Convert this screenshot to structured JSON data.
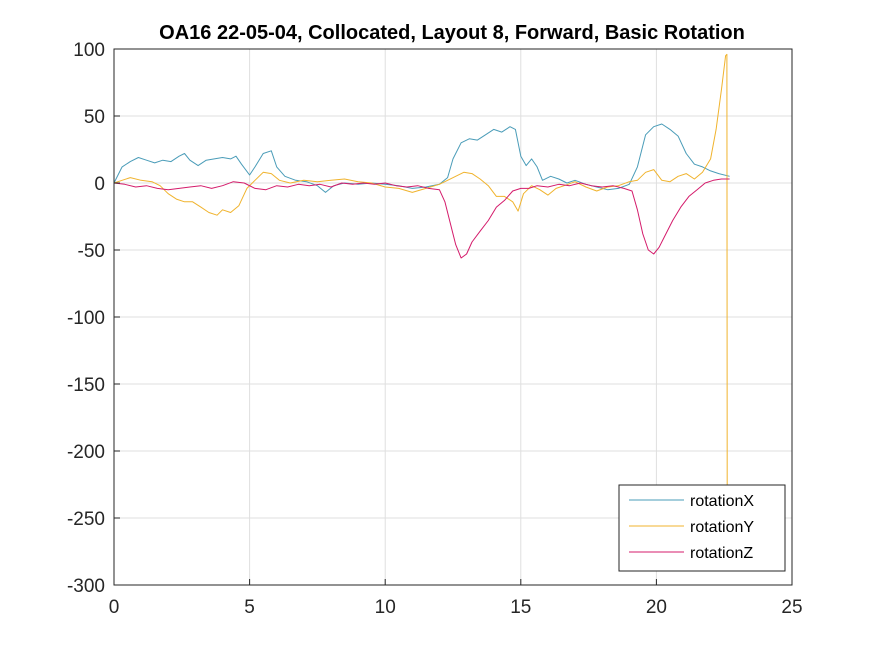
{
  "chart_data": {
    "type": "line",
    "title": "OA16 22-05-04, Collocated, Layout 8, Forward, Basic Rotation",
    "xlabel": "",
    "ylabel": "",
    "xlim": [
      0,
      25
    ],
    "ylim": [
      -300,
      100
    ],
    "xticks": [
      "0",
      "5",
      "10",
      "15",
      "20",
      "25"
    ],
    "yticks": [
      "100",
      "50",
      "0",
      "-50",
      "-100",
      "-150",
      "-200",
      "-250",
      "-300"
    ],
    "grid": true,
    "legend_position": "bottom-right",
    "series": [
      {
        "name": "rotationX",
        "color": "#4a9cb8",
        "points": [
          [
            0,
            0
          ],
          [
            0.3,
            12
          ],
          [
            0.6,
            16
          ],
          [
            0.9,
            19
          ],
          [
            1.2,
            17
          ],
          [
            1.5,
            15
          ],
          [
            1.8,
            17
          ],
          [
            2.1,
            16
          ],
          [
            2.4,
            20
          ],
          [
            2.6,
            22
          ],
          [
            2.8,
            17
          ],
          [
            3.1,
            13
          ],
          [
            3.4,
            17
          ],
          [
            3.7,
            18
          ],
          [
            4.0,
            19
          ],
          [
            4.3,
            18
          ],
          [
            4.5,
            20
          ],
          [
            4.7,
            14
          ],
          [
            5.0,
            6
          ],
          [
            5.2,
            12
          ],
          [
            5.5,
            22
          ],
          [
            5.8,
            24
          ],
          [
            6.0,
            12
          ],
          [
            6.3,
            5
          ],
          [
            6.7,
            2
          ],
          [
            7.1,
            1
          ],
          [
            7.5,
            -2
          ],
          [
            7.8,
            -7
          ],
          [
            8.1,
            -2
          ],
          [
            8.5,
            0
          ],
          [
            9.0,
            -1
          ],
          [
            9.5,
            0
          ],
          [
            10.0,
            -1
          ],
          [
            10.5,
            -2
          ],
          [
            11.0,
            -4
          ],
          [
            11.5,
            -3
          ],
          [
            12.0,
            -1
          ],
          [
            12.3,
            4
          ],
          [
            12.5,
            18
          ],
          [
            12.8,
            30
          ],
          [
            13.1,
            33
          ],
          [
            13.4,
            32
          ],
          [
            13.7,
            36
          ],
          [
            14.0,
            40
          ],
          [
            14.3,
            38
          ],
          [
            14.6,
            42
          ],
          [
            14.8,
            40
          ],
          [
            15.0,
            20
          ],
          [
            15.2,
            13
          ],
          [
            15.4,
            18
          ],
          [
            15.6,
            12
          ],
          [
            15.8,
            2
          ],
          [
            16.1,
            5
          ],
          [
            16.4,
            3
          ],
          [
            16.7,
            0
          ],
          [
            17.0,
            2
          ],
          [
            17.4,
            -1
          ],
          [
            17.8,
            -3
          ],
          [
            18.2,
            -5
          ],
          [
            18.6,
            -4
          ],
          [
            19.0,
            -1
          ],
          [
            19.3,
            12
          ],
          [
            19.6,
            36
          ],
          [
            19.9,
            42
          ],
          [
            20.2,
            44
          ],
          [
            20.5,
            40
          ],
          [
            20.8,
            35
          ],
          [
            21.1,
            22
          ],
          [
            21.4,
            14
          ],
          [
            21.7,
            12
          ],
          [
            22.0,
            9
          ],
          [
            22.3,
            7
          ],
          [
            22.7,
            5
          ]
        ]
      },
      {
        "name": "rotationY",
        "color": "#f0b32d",
        "points": [
          [
            0,
            0
          ],
          [
            0.3,
            2
          ],
          [
            0.6,
            4
          ],
          [
            1.0,
            2
          ],
          [
            1.4,
            1
          ],
          [
            1.7,
            -2
          ],
          [
            2.0,
            -8
          ],
          [
            2.3,
            -12
          ],
          [
            2.6,
            -14
          ],
          [
            2.9,
            -14
          ],
          [
            3.2,
            -18
          ],
          [
            3.5,
            -22
          ],
          [
            3.8,
            -24
          ],
          [
            4.0,
            -20
          ],
          [
            4.3,
            -22
          ],
          [
            4.6,
            -17
          ],
          [
            4.9,
            -4
          ],
          [
            5.2,
            2
          ],
          [
            5.5,
            8
          ],
          [
            5.8,
            7
          ],
          [
            6.1,
            2
          ],
          [
            6.5,
            0
          ],
          [
            7.0,
            2
          ],
          [
            7.5,
            1
          ],
          [
            8.0,
            2
          ],
          [
            8.5,
            3
          ],
          [
            9.0,
            1
          ],
          [
            9.5,
            0
          ],
          [
            10.0,
            -3
          ],
          [
            10.5,
            -4
          ],
          [
            11.0,
            -7
          ],
          [
            11.5,
            -4
          ],
          [
            12.0,
            -1
          ],
          [
            12.3,
            2
          ],
          [
            12.6,
            5
          ],
          [
            12.9,
            8
          ],
          [
            13.2,
            7
          ],
          [
            13.5,
            3
          ],
          [
            13.8,
            -2
          ],
          [
            14.1,
            -10
          ],
          [
            14.4,
            -10
          ],
          [
            14.7,
            -14
          ],
          [
            14.9,
            -21
          ],
          [
            15.1,
            -8
          ],
          [
            15.4,
            -2
          ],
          [
            15.7,
            -5
          ],
          [
            16.0,
            -9
          ],
          [
            16.3,
            -4
          ],
          [
            16.6,
            -2
          ],
          [
            17.0,
            1
          ],
          [
            17.4,
            -3
          ],
          [
            17.8,
            -6
          ],
          [
            18.2,
            -3
          ],
          [
            18.6,
            -2
          ],
          [
            19.0,
            1
          ],
          [
            19.3,
            2
          ],
          [
            19.6,
            8
          ],
          [
            19.9,
            10
          ],
          [
            20.2,
            2
          ],
          [
            20.5,
            1
          ],
          [
            20.8,
            5
          ],
          [
            21.1,
            7
          ],
          [
            21.4,
            3
          ],
          [
            21.7,
            8
          ],
          [
            22.0,
            18
          ],
          [
            22.2,
            40
          ],
          [
            22.4,
            70
          ],
          [
            22.55,
            95
          ],
          [
            22.6,
            96
          ],
          [
            22.61,
            -230
          ]
        ]
      },
      {
        "name": "rotationZ",
        "color": "#d41b6b",
        "points": [
          [
            0,
            0
          ],
          [
            0.4,
            -1
          ],
          [
            0.8,
            -3
          ],
          [
            1.2,
            -2
          ],
          [
            1.6,
            -4
          ],
          [
            2.0,
            -5
          ],
          [
            2.4,
            -4
          ],
          [
            2.8,
            -3
          ],
          [
            3.2,
            -2
          ],
          [
            3.6,
            -4
          ],
          [
            4.0,
            -2
          ],
          [
            4.4,
            1
          ],
          [
            4.8,
            0
          ],
          [
            5.2,
            -4
          ],
          [
            5.6,
            -5
          ],
          [
            6.0,
            -2
          ],
          [
            6.4,
            -3
          ],
          [
            6.8,
            -1
          ],
          [
            7.2,
            -2
          ],
          [
            7.6,
            -1
          ],
          [
            8.0,
            -3
          ],
          [
            8.4,
            0
          ],
          [
            8.8,
            -1
          ],
          [
            9.2,
            0
          ],
          [
            9.6,
            -1
          ],
          [
            10.0,
            0
          ],
          [
            10.4,
            -2
          ],
          [
            10.8,
            -3
          ],
          [
            11.2,
            -2
          ],
          [
            11.6,
            -4
          ],
          [
            12.0,
            -5
          ],
          [
            12.2,
            -14
          ],
          [
            12.4,
            -30
          ],
          [
            12.6,
            -46
          ],
          [
            12.8,
            -56
          ],
          [
            13.0,
            -53
          ],
          [
            13.2,
            -44
          ],
          [
            13.5,
            -36
          ],
          [
            13.8,
            -28
          ],
          [
            14.1,
            -18
          ],
          [
            14.4,
            -13
          ],
          [
            14.7,
            -6
          ],
          [
            15.0,
            -4
          ],
          [
            15.3,
            -4
          ],
          [
            15.6,
            -2
          ],
          [
            16.0,
            -3
          ],
          [
            16.4,
            -1
          ],
          [
            16.8,
            -2
          ],
          [
            17.2,
            0
          ],
          [
            17.6,
            -2
          ],
          [
            18.0,
            -3
          ],
          [
            18.4,
            -2
          ],
          [
            18.8,
            -4
          ],
          [
            19.1,
            -6
          ],
          [
            19.3,
            -20
          ],
          [
            19.5,
            -38
          ],
          [
            19.7,
            -50
          ],
          [
            19.9,
            -53
          ],
          [
            20.1,
            -48
          ],
          [
            20.3,
            -40
          ],
          [
            20.6,
            -28
          ],
          [
            20.9,
            -18
          ],
          [
            21.2,
            -10
          ],
          [
            21.5,
            -5
          ],
          [
            21.8,
            0
          ],
          [
            22.1,
            2
          ],
          [
            22.4,
            3
          ],
          [
            22.7,
            3
          ]
        ]
      }
    ]
  }
}
